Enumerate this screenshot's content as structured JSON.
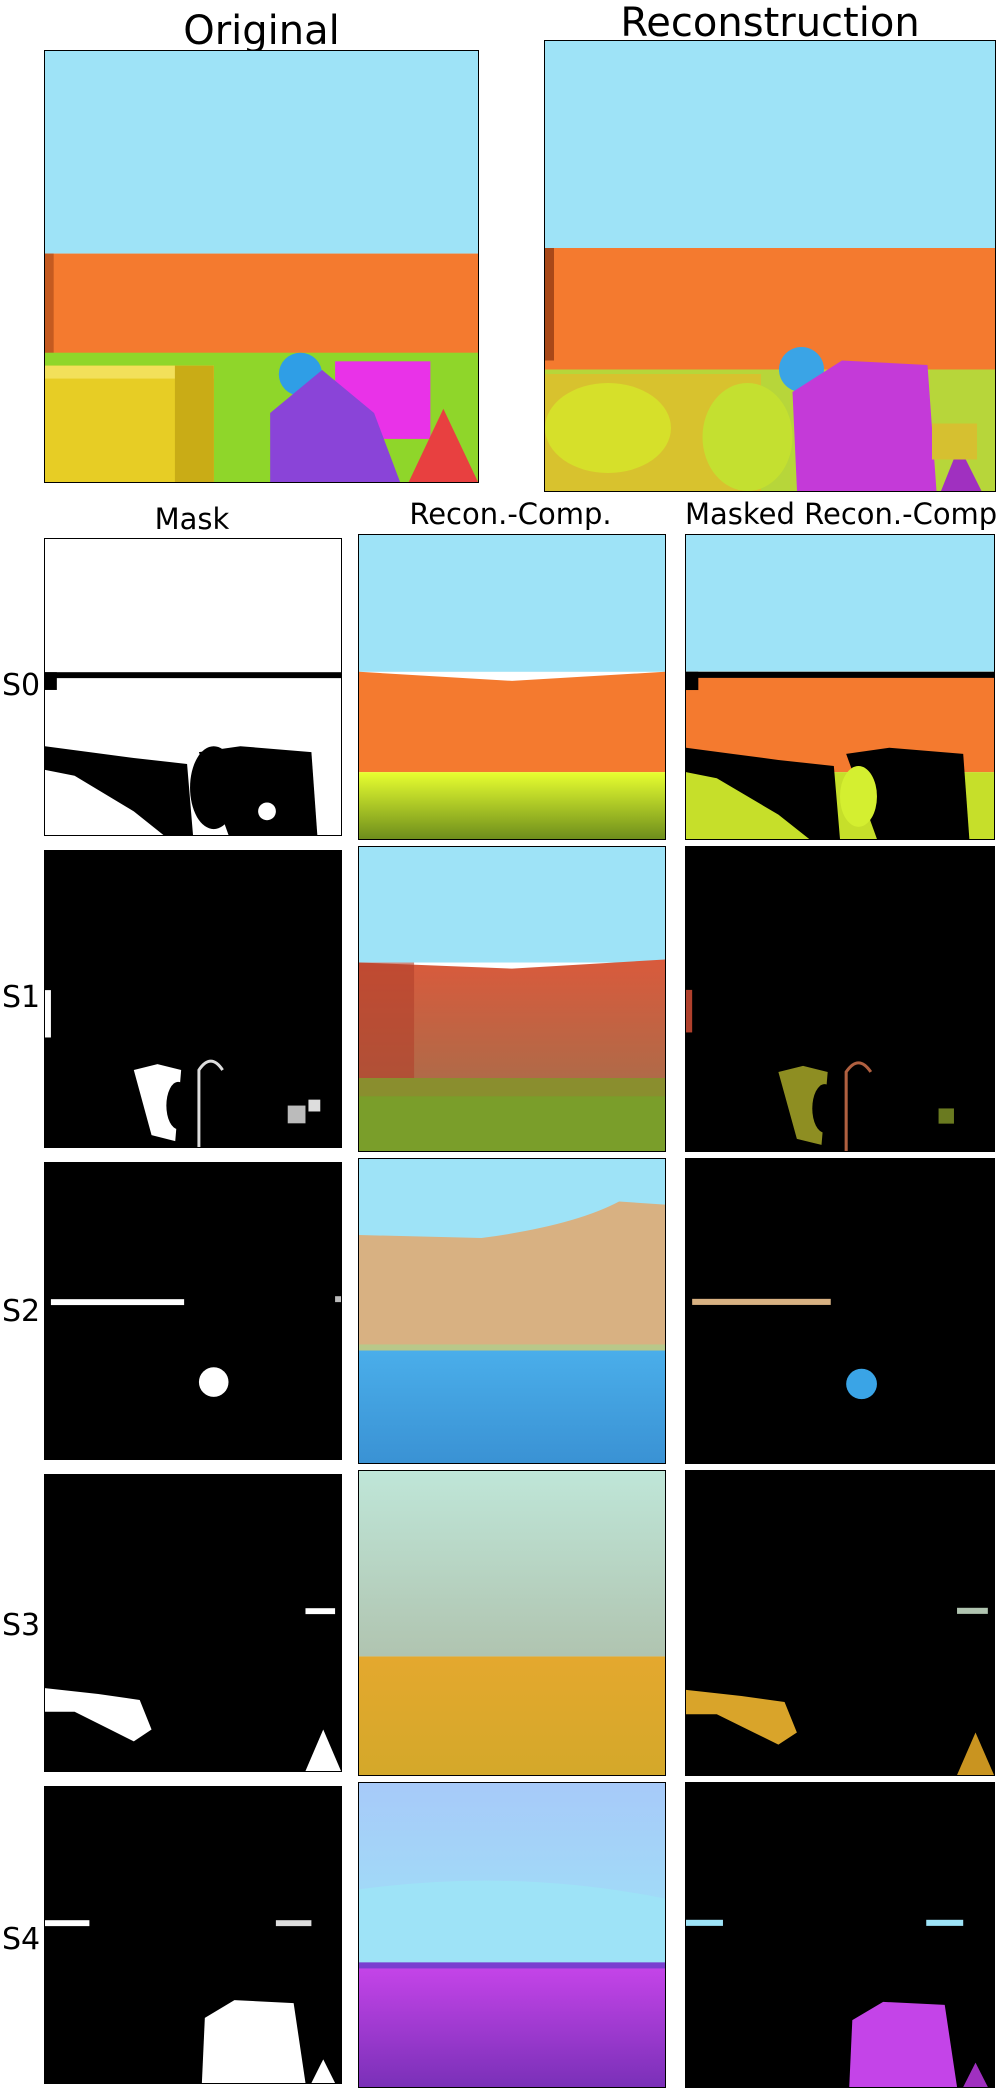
{
  "titles": {
    "original": "Original",
    "reconstruction": "Reconstruction",
    "mask": "Mask",
    "recon_comp": "Recon.-Comp.",
    "masked_recon_comp": "Masked Recon.-Comp."
  },
  "rows": [
    {
      "label": "S0"
    },
    {
      "label": "S1"
    },
    {
      "label": "S2"
    },
    {
      "label": "S3"
    },
    {
      "label": "S4"
    }
  ],
  "colors": {
    "sky": "#9ee3f7",
    "orange_wall": "#f47a2f",
    "yellow": "#e7cd25",
    "green": "#8fd62a",
    "purple": "#8a44d8",
    "magenta": "#e932e8",
    "blue_ball": "#2f9ee6",
    "red_cone": "#e84040"
  }
}
